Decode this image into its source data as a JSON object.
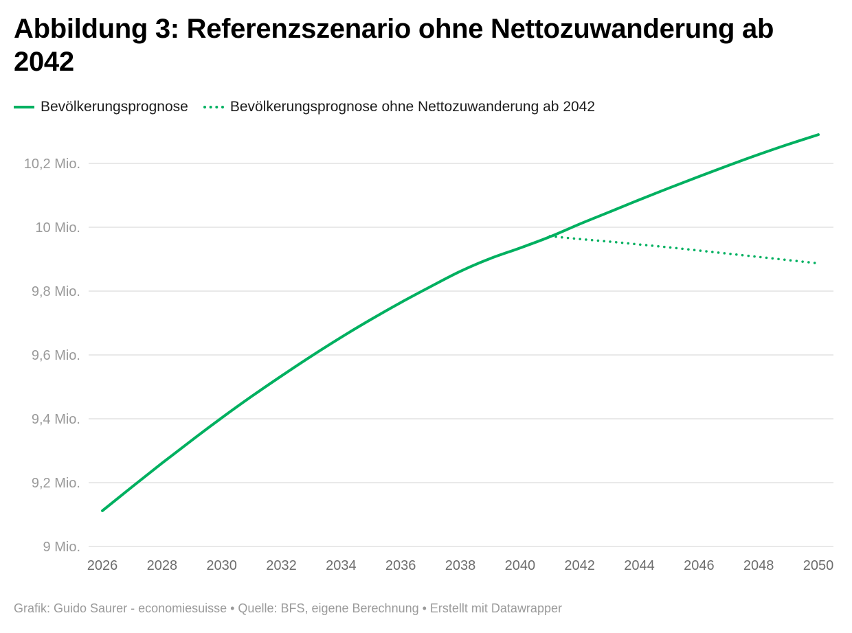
{
  "chart_data": {
    "type": "line",
    "title": "Abbildung 3: Referenzszenario ohne Nettozuwanderung ab 2042",
    "xlabel": "",
    "ylabel": "",
    "ylim": [
      9.0,
      10.3
    ],
    "xlim": [
      2026,
      2050
    ],
    "grid": true,
    "legend_position": "top-left",
    "y_ticks": [
      {
        "value": 10.2,
        "label": "10,2 Mio."
      },
      {
        "value": 10.0,
        "label": "10 Mio."
      },
      {
        "value": 9.8,
        "label": "9,8 Mio."
      },
      {
        "value": 9.6,
        "label": "9,6 Mio."
      },
      {
        "value": 9.4,
        "label": "9,4 Mio."
      },
      {
        "value": 9.2,
        "label": "9,2 Mio."
      },
      {
        "value": 9.0,
        "label": "9 Mio."
      }
    ],
    "x_ticks": [
      "2026",
      "2028",
      "2030",
      "2032",
      "2034",
      "2036",
      "2038",
      "2040",
      "2042",
      "2044",
      "2046",
      "2048",
      "2050"
    ],
    "series": [
      {
        "name": "Bevölkerungsprognose",
        "style": "solid",
        "color": "#00b060",
        "x": [
          2026,
          2027,
          2028,
          2029,
          2030,
          2031,
          2032,
          2033,
          2034,
          2035,
          2036,
          2037,
          2038,
          2039,
          2040,
          2041,
          2042,
          2043,
          2044,
          2045,
          2046,
          2047,
          2048,
          2049,
          2050
        ],
        "values": [
          9.112,
          9.187,
          9.261,
          9.333,
          9.403,
          9.47,
          9.534,
          9.596,
          9.655,
          9.711,
          9.764,
          9.814,
          9.862,
          9.902,
          9.935,
          9.97,
          10.01,
          10.048,
          10.086,
          10.123,
          10.159,
          10.194,
          10.228,
          10.26,
          10.29
        ]
      },
      {
        "name": "Bevölkerungsprognose ohne Nettozuwanderung ab 2042",
        "style": "dotted",
        "color": "#00b060",
        "x": [
          2041,
          2042,
          2043,
          2044,
          2045,
          2046,
          2047,
          2048,
          2049,
          2050
        ],
        "values": [
          9.972,
          9.963,
          9.955,
          9.946,
          9.937,
          9.927,
          9.917,
          9.907,
          9.897,
          9.887
        ]
      }
    ]
  },
  "header": {
    "title": "Abbildung 3: Referenzszenario ohne Nettozuwanderung ab 2042"
  },
  "legend": {
    "items": [
      {
        "label": "Bevölkerungsprognose",
        "style": "solid"
      },
      {
        "label": "Bevölkerungsprognose ohne Nettozuwanderung ab 2042",
        "style": "dotted"
      }
    ]
  },
  "footer": {
    "text": "Grafik: Guido Saurer - economiesuisse • Quelle: BFS, eigene Berechnung • Erstellt mit Datawrapper"
  },
  "colors": {
    "accent": "#00b060",
    "grid": "#e2e2e2",
    "tick_text": "#9a9a9a"
  }
}
